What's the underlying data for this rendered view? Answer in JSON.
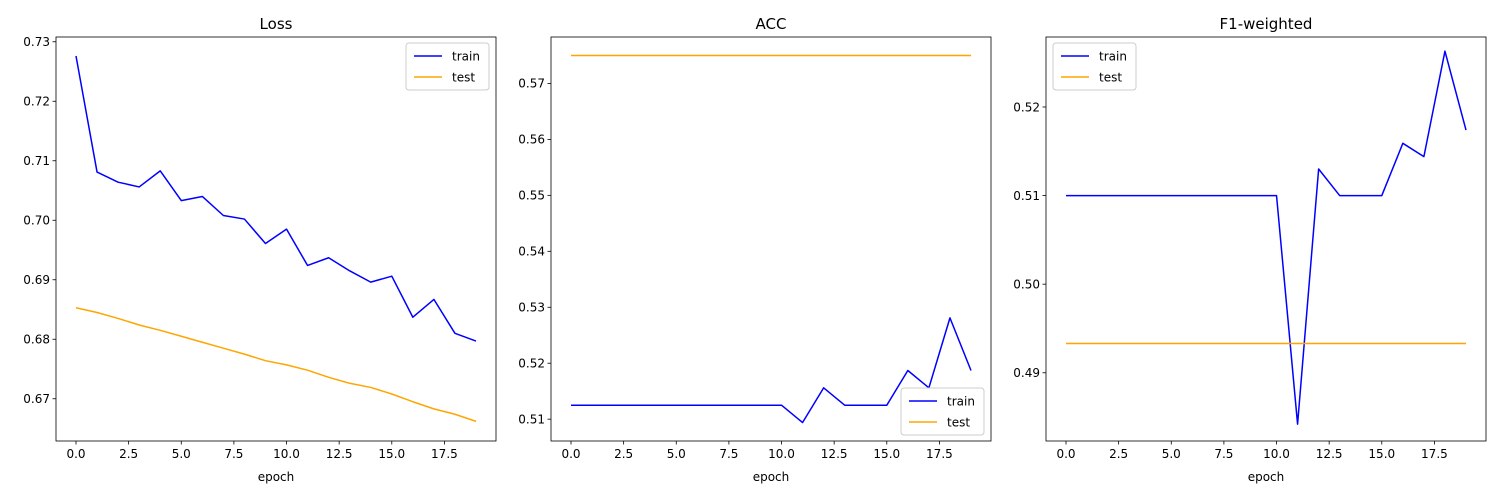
{
  "colors": {
    "train": "#0000ff",
    "test": "#ffa500"
  },
  "chart_data": [
    {
      "type": "line",
      "title": "Loss",
      "xlabel": "epoch",
      "ylabel": "",
      "xlim": [
        -0.95,
        19.95
      ],
      "ylim": [
        0.6629,
        0.7308
      ],
      "xticks": [
        0.0,
        2.5,
        5.0,
        7.5,
        10.0,
        12.5,
        15.0,
        17.5
      ],
      "xtick_labels": [
        "0.0",
        "2.5",
        "5.0",
        "7.5",
        "10.0",
        "12.5",
        "15.0",
        "17.5"
      ],
      "yticks": [
        0.67,
        0.68,
        0.69,
        0.7,
        0.71,
        0.72,
        0.73
      ],
      "ytick_labels": [
        "0.67",
        "0.68",
        "0.69",
        "0.70",
        "0.71",
        "0.72",
        "0.73"
      ],
      "legend": "upper right",
      "grid": false,
      "x": [
        0,
        1,
        2,
        3,
        4,
        5,
        6,
        7,
        8,
        9,
        10,
        11,
        12,
        13,
        14,
        15,
        16,
        17,
        18,
        19
      ],
      "series": [
        {
          "name": "train",
          "color": "#0000ff",
          "values": [
            0.7276,
            0.7081,
            0.7064,
            0.7056,
            0.7083,
            0.7033,
            0.704,
            0.7008,
            0.7002,
            0.6961,
            0.6985,
            0.6924,
            0.6937,
            0.6915,
            0.6896,
            0.6906,
            0.6837,
            0.6867,
            0.681,
            0.6797
          ]
        },
        {
          "name": "test",
          "color": "#ffa500",
          "values": [
            0.6853,
            0.6845,
            0.6835,
            0.6824,
            0.6815,
            0.6805,
            0.6795,
            0.6785,
            0.6775,
            0.6764,
            0.6757,
            0.6748,
            0.6736,
            0.6726,
            0.6719,
            0.6708,
            0.6695,
            0.6683,
            0.6674,
            0.6662
          ]
        }
      ]
    },
    {
      "type": "line",
      "title": "ACC",
      "xlabel": "epoch",
      "ylabel": "",
      "xlim": [
        -0.95,
        19.95
      ],
      "ylim": [
        0.5061,
        0.5783
      ],
      "xticks": [
        0.0,
        2.5,
        5.0,
        7.5,
        10.0,
        12.5,
        15.0,
        17.5
      ],
      "xtick_labels": [
        "0.0",
        "2.5",
        "5.0",
        "7.5",
        "10.0",
        "12.5",
        "15.0",
        "17.5"
      ],
      "yticks": [
        0.51,
        0.52,
        0.53,
        0.54,
        0.55,
        0.56,
        0.57
      ],
      "ytick_labels": [
        "0.51",
        "0.52",
        "0.53",
        "0.54",
        "0.55",
        "0.56",
        "0.57"
      ],
      "legend": "lower right",
      "grid": false,
      "x": [
        0,
        1,
        2,
        3,
        4,
        5,
        6,
        7,
        8,
        9,
        10,
        11,
        12,
        13,
        14,
        15,
        16,
        17,
        18,
        19
      ],
      "series": [
        {
          "name": "train",
          "color": "#0000ff",
          "values": [
            0.5125,
            0.5125,
            0.5125,
            0.5125,
            0.5125,
            0.5125,
            0.5125,
            0.5125,
            0.5125,
            0.5125,
            0.5125,
            0.5094,
            0.5156,
            0.5125,
            0.5125,
            0.5125,
            0.5187,
            0.5156,
            0.5281,
            0.5187
          ]
        },
        {
          "name": "test",
          "color": "#ffa500",
          "values": [
            0.575,
            0.575,
            0.575,
            0.575,
            0.575,
            0.575,
            0.575,
            0.575,
            0.575,
            0.575,
            0.575,
            0.575,
            0.575,
            0.575,
            0.575,
            0.575,
            0.575,
            0.575,
            0.575,
            0.575
          ]
        }
      ]
    },
    {
      "type": "line",
      "title": "F1-weighted",
      "xlabel": "epoch",
      "ylabel": "",
      "xlim": [
        -0.95,
        19.95
      ],
      "ylim": [
        0.4823,
        0.5279
      ],
      "xticks": [
        0.0,
        2.5,
        5.0,
        7.5,
        10.0,
        12.5,
        15.0,
        17.5
      ],
      "xtick_labels": [
        "0.0",
        "2.5",
        "5.0",
        "7.5",
        "10.0",
        "12.5",
        "15.0",
        "17.5"
      ],
      "yticks": [
        0.49,
        0.5,
        0.51,
        0.52
      ],
      "ytick_labels": [
        "0.49",
        "0.50",
        "0.51",
        "0.52"
      ],
      "legend": "upper left",
      "grid": false,
      "x": [
        0,
        1,
        2,
        3,
        4,
        5,
        6,
        7,
        8,
        9,
        10,
        11,
        12,
        13,
        14,
        15,
        16,
        17,
        18,
        19
      ],
      "series": [
        {
          "name": "train",
          "color": "#0000ff",
          "values": [
            0.51,
            0.51,
            0.51,
            0.51,
            0.51,
            0.51,
            0.51,
            0.51,
            0.51,
            0.51,
            0.51,
            0.4842,
            0.513,
            0.51,
            0.51,
            0.51,
            0.5159,
            0.5144,
            0.5263,
            0.5174
          ]
        },
        {
          "name": "test",
          "color": "#ffa500",
          "values": [
            0.4933,
            0.4933,
            0.4933,
            0.4933,
            0.4933,
            0.4933,
            0.4933,
            0.4933,
            0.4933,
            0.4933,
            0.4933,
            0.4933,
            0.4933,
            0.4933,
            0.4933,
            0.4933,
            0.4933,
            0.4933,
            0.4933,
            0.4933
          ]
        }
      ]
    }
  ]
}
